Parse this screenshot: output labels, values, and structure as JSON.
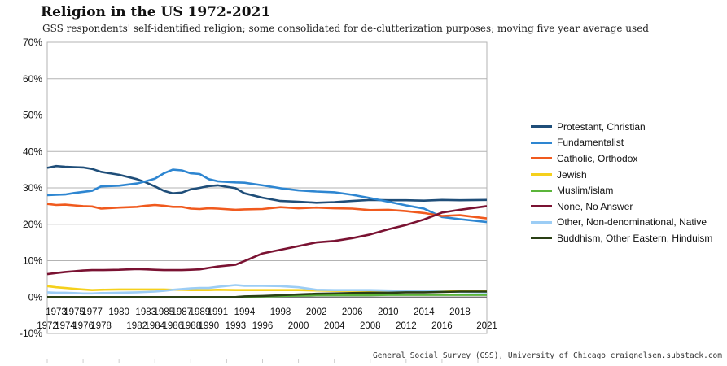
{
  "chart_data": {
    "type": "line",
    "title": "Religion in the US 1972-2021",
    "subtitle": "GSS respondents' self-identified religion; some consolidated for de-clutterization purposes; moving five year average used",
    "source": "General Social Survey (GSS), University of Chicago craignelsen.substack.com",
    "ylim": [
      -10,
      70
    ],
    "y_ticks": [
      "-10%",
      "0%",
      "10%",
      "20%",
      "30%",
      "40%",
      "50%",
      "60%",
      "70%"
    ],
    "x_ticks_upper": [
      "1973",
      "1975",
      "1977",
      "1980",
      "1983",
      "1985",
      "1987",
      "1989",
      "1991",
      "1994",
      "1998",
      "2002",
      "2006",
      "2010",
      "2014",
      "2018"
    ],
    "x_ticks_lower": [
      "1972",
      "1974",
      "1976",
      "1978",
      "1982",
      "1984",
      "1986",
      "1988",
      "1990",
      "1993",
      "1996",
      "2000",
      "2004",
      "2008",
      "2012",
      "2016",
      "2021"
    ],
    "x": [
      "1972",
      "1973",
      "1974",
      "1975",
      "1976",
      "1977",
      "1978",
      "1980",
      "1982",
      "1983",
      "1984",
      "1985",
      "1986",
      "1987",
      "1988",
      "1989",
      "1990",
      "1991",
      "1993",
      "1994",
      "1996",
      "1998",
      "2000",
      "2002",
      "2004",
      "2006",
      "2008",
      "2010",
      "2012",
      "2014",
      "2016",
      "2018",
      "2021"
    ],
    "grid": true,
    "legend_position": "right",
    "series": [
      {
        "name": "Protestant, Christian",
        "color": "#1f4e79",
        "values": [
          35.5,
          36.0,
          35.8,
          35.7,
          35.6,
          35.2,
          34.4,
          33.6,
          32.4,
          31.5,
          30.4,
          29.2,
          28.5,
          28.7,
          29.6,
          30.0,
          30.5,
          30.7,
          29.9,
          28.5,
          27.3,
          26.4,
          26.2,
          25.9,
          26.1,
          26.4,
          26.7,
          26.6,
          26.6,
          26.5,
          26.7,
          26.6,
          26.7
        ]
      },
      {
        "name": "Fundamentalist",
        "color": "#2e86d1",
        "values": [
          28.0,
          28.1,
          28.2,
          28.6,
          28.9,
          29.2,
          30.4,
          30.6,
          31.2,
          31.8,
          32.5,
          34.0,
          35.0,
          34.8,
          34.0,
          33.8,
          32.4,
          31.8,
          31.5,
          31.4,
          30.7,
          29.9,
          29.3,
          29.0,
          28.8,
          28.1,
          27.2,
          26.2,
          25.2,
          24.3,
          22.0,
          21.4,
          20.6
        ]
      },
      {
        "name": "Catholic, Orthodox",
        "color": "#f05a1e",
        "values": [
          25.6,
          25.3,
          25.4,
          25.2,
          25.0,
          24.9,
          24.3,
          24.6,
          24.8,
          25.1,
          25.3,
          25.1,
          24.8,
          24.8,
          24.3,
          24.2,
          24.4,
          24.3,
          24.0,
          24.1,
          24.2,
          24.7,
          24.4,
          24.6,
          24.4,
          24.3,
          23.9,
          24.0,
          23.6,
          23.1,
          22.3,
          22.5,
          21.6
        ]
      },
      {
        "name": "Jewish",
        "color": "#f5d01c",
        "values": [
          3.0,
          2.7,
          2.5,
          2.3,
          2.1,
          1.9,
          2.0,
          2.1,
          2.1,
          2.1,
          2.1,
          2.1,
          2.0,
          2.0,
          1.9,
          1.9,
          1.9,
          2.0,
          1.9,
          1.9,
          1.9,
          1.9,
          1.9,
          1.8,
          1.7,
          1.7,
          1.7,
          1.7,
          1.7,
          1.7,
          1.7,
          1.7,
          1.6
        ]
      },
      {
        "name": "Muslim/islam",
        "color": "#5bb53a",
        "values": [
          0,
          0,
          0,
          0,
          0,
          0,
          0,
          0,
          0,
          0,
          0,
          0,
          0,
          0,
          0,
          0,
          0,
          0,
          0,
          0.1,
          0.2,
          0.3,
          0.4,
          0.5,
          0.5,
          0.5,
          0.5,
          0.6,
          0.6,
          0.6,
          0.6,
          0.6,
          0.6
        ]
      },
      {
        "name": "None, No Answer",
        "color": "#7a1232",
        "values": [
          6.3,
          6.6,
          6.9,
          7.1,
          7.3,
          7.4,
          7.4,
          7.5,
          7.7,
          7.6,
          7.5,
          7.4,
          7.4,
          7.4,
          7.5,
          7.6,
          8.0,
          8.4,
          8.9,
          9.9,
          12.0,
          13.0,
          14.0,
          15.0,
          15.4,
          16.2,
          17.2,
          18.6,
          19.8,
          21.3,
          23.2,
          24.0,
          25.0
        ]
      },
      {
        "name": "Other, Non-denominational, Native",
        "color": "#9ccdf5",
        "values": [
          1.3,
          1.2,
          1.2,
          1.1,
          1.0,
          1.0,
          1.1,
          1.2,
          1.3,
          1.4,
          1.5,
          1.7,
          2.0,
          2.2,
          2.4,
          2.5,
          2.5,
          2.8,
          3.3,
          3.1,
          3.1,
          3.0,
          2.7,
          2.0,
          1.9,
          1.9,
          1.9,
          1.8,
          1.7,
          1.6,
          1.5,
          1.4,
          1.3
        ]
      },
      {
        "name": "Buddhism, Other Eastern, Hinduism",
        "color": "#2a3f14",
        "values": [
          0,
          0,
          0,
          0,
          0,
          0,
          0,
          0,
          0,
          0,
          0,
          0,
          0,
          0,
          0,
          0,
          0,
          0,
          0,
          0.2,
          0.3,
          0.5,
          0.7,
          0.9,
          1.0,
          1.1,
          1.2,
          1.2,
          1.3,
          1.3,
          1.4,
          1.5,
          1.5
        ]
      }
    ]
  }
}
